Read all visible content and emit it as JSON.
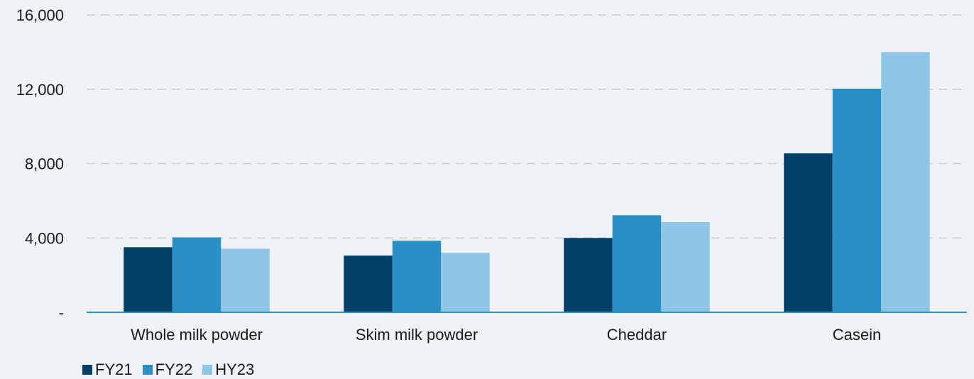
{
  "chart_data": {
    "type": "bar",
    "categories": [
      "Whole milk powder",
      "Skim milk powder",
      "Cheddar",
      "Casein"
    ],
    "series": [
      {
        "name": "FY21",
        "color": "#003f66",
        "values": [
          3500,
          3050,
          4000,
          8550
        ]
      },
      {
        "name": "FY22",
        "color": "#2a8fc4",
        "values": [
          4030,
          3850,
          5220,
          12030
        ]
      },
      {
        "name": "HY23",
        "color": "#8dc6e6",
        "values": [
          3420,
          3200,
          4850,
          14000
        ]
      }
    ],
    "yticks": [
      "-",
      "4,000",
      "8,000",
      "12,000",
      "16,000"
    ],
    "ylim": [
      0,
      16000
    ],
    "grid": true,
    "legend_position": "bottom-left"
  }
}
